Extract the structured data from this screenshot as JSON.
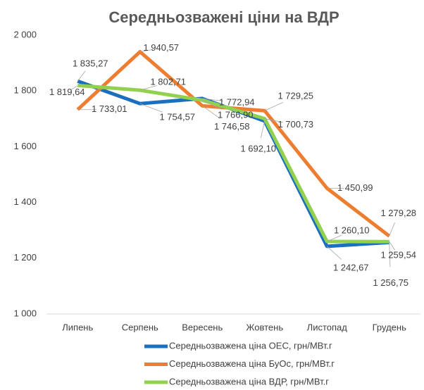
{
  "chart_data": {
    "type": "line",
    "title": "Середньозважені ціни на ВДР",
    "categories": [
      "Липень",
      "Серпень",
      "Вересень",
      "Жовтень",
      "Листопад",
      "Грудень"
    ],
    "series": [
      {
        "name": "Середньозважена ціна ОЕС, грн/МВт.г",
        "color": "#1a6fc0",
        "values": [
          1835.27,
          1754.57,
          1772.94,
          1692.1,
          1242.67,
          1256.75
        ],
        "value_labels": [
          "1 835,27",
          "1 754,57",
          "1 772,94",
          "1 692,10",
          "1 242,67",
          "1 256,75"
        ]
      },
      {
        "name": "Середньозважена ціна БуОс, грн/МВт.г",
        "color": "#ed7d31",
        "values": [
          1733.01,
          1940.57,
          1746.58,
          1729.25,
          1450.99,
          1279.28
        ],
        "value_labels": [
          "1 733,01",
          "1 940,57",
          "1 746,58",
          "1 729,25",
          "1 450,99",
          "1 279,28"
        ]
      },
      {
        "name": "Середньозважена ціна ВДР, грн/МВт.г",
        "color": "#92d050",
        "values": [
          1819.64,
          1802.71,
          1766.9,
          1700.73,
          1260.1,
          1259.54
        ],
        "value_labels": [
          "1 819,64",
          "1 802,71",
          "1 766,90",
          "1 700,73",
          "1 260,10",
          "1 259,54"
        ]
      }
    ],
    "ylim": [
      1000,
      2000
    ],
    "yticks": [
      {
        "value": 1000,
        "label": "1 000"
      },
      {
        "value": 1200,
        "label": "1 200"
      },
      {
        "value": 1400,
        "label": "1 400"
      },
      {
        "value": 1600,
        "label": "1 600"
      },
      {
        "value": 1800,
        "label": "1 800"
      },
      {
        "value": 2000,
        "label": "2 000"
      }
    ],
    "grid": false,
    "legend": "bottom"
  }
}
